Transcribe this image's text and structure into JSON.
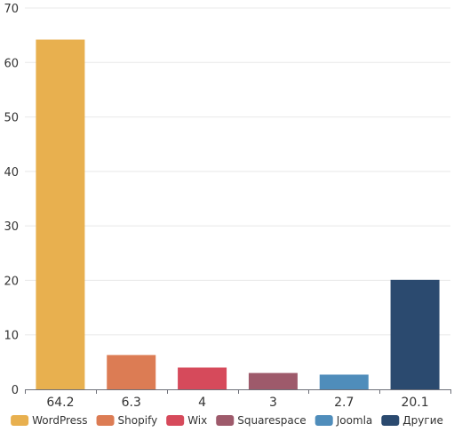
{
  "chart_data": {
    "type": "bar",
    "categories": [
      "64.2",
      "6.3",
      "4",
      "3",
      "2.7",
      "20.1"
    ],
    "values": [
      64.2,
      6.3,
      4,
      3,
      2.7,
      20.1
    ],
    "series_names": [
      "WordPress",
      "Shopify",
      "Wix",
      "Squarespace",
      "Joomla",
      "Другие"
    ],
    "colors": [
      "#e8b04f",
      "#dc7c54",
      "#d64a5b",
      "#9e5a6b",
      "#4f8dbb",
      "#2b4a6f"
    ],
    "ylim": [
      0,
      70
    ],
    "yticks": [
      "0",
      "10",
      "20",
      "30",
      "40",
      "50",
      "60",
      "70"
    ],
    "grid": true,
    "legend": "bottom"
  }
}
